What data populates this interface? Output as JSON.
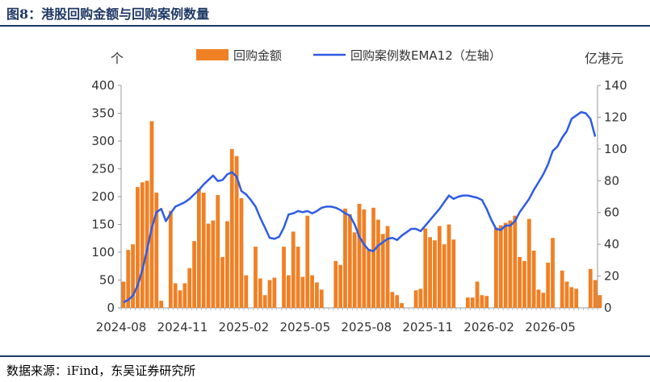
{
  "header": {
    "title": "图8：港股回购金额与回购案例数量"
  },
  "footer": {
    "source": "数据来源：iFind，东吴证券研究所"
  },
  "colors": {
    "bar": "#f08024",
    "line": "#2e5ce6",
    "title": "#1f3864",
    "axis": "#333333"
  },
  "chart_data": {
    "type": "bar",
    "legend_position": "top",
    "grid": false,
    "left_axis": {
      "unit_label": "个",
      "range": [
        0,
        400
      ],
      "ticks": [
        "0",
        "50",
        "100",
        "150",
        "200",
        "250",
        "300",
        "350",
        "400"
      ]
    },
    "right_axis": {
      "unit_label": "亿港元",
      "range": [
        0,
        140
      ],
      "ticks": [
        "0",
        "20",
        "40",
        "60",
        "80",
        "100",
        "120",
        "140"
      ]
    },
    "x_labels": [
      "2024-08",
      "2024-11",
      "2025-02",
      "2025-05",
      "2025-08",
      "2025-11",
      "2026-02",
      "2026-05"
    ],
    "period_count": 101,
    "x_label_periods": [
      0,
      13,
      26,
      39,
      52,
      65,
      78,
      91
    ],
    "series": [
      {
        "name": "回购金额",
        "kind": "bar",
        "axis": "right",
        "values": [
          16.5,
          36.5,
          40,
          76,
          79,
          80,
          117.5,
          72.5,
          4.5,
          null,
          61,
          15.5,
          11,
          15.5,
          25,
          42,
          75,
          72.5,
          53,
          55,
          71,
          32,
          54.5,
          100,
          95.5,
          69,
          20.5,
          null,
          38.5,
          18.5,
          8,
          17.5,
          19,
          null,
          38.5,
          20.5,
          48,
          38.5,
          19.5,
          58,
          20.5,
          16,
          11.5,
          null,
          null,
          29.5,
          27,
          62.5,
          59,
          47.5,
          65.5,
          62,
          37,
          63,
          55.5,
          46.5,
          51.5,
          10,
          8,
          3,
          null,
          null,
          11,
          12,
          50,
          44.5,
          42.5,
          51.5,
          40,
          52.5,
          43,
          null,
          null,
          6.5,
          6.5,
          16.5,
          8,
          7.5,
          null,
          50.5,
          52,
          53.5,
          55,
          58,
          32,
          29.5,
          56,
          36,
          11.5,
          9.5,
          28.5,
          44,
          null,
          23.5,
          16.5,
          13,
          12,
          null,
          null,
          24.5,
          17.5,
          8
        ]
      },
      {
        "name": "回购案例数EMA12（左轴）",
        "kind": "line",
        "axis": "left",
        "x_period": [
          0,
          1,
          2,
          3,
          4,
          5,
          6,
          7,
          8,
          9,
          10,
          11,
          12,
          13,
          14,
          15,
          16,
          17,
          18,
          19,
          20,
          21,
          22,
          23,
          24,
          25,
          26,
          27,
          28,
          29,
          30,
          31,
          32,
          33,
          34,
          35,
          36,
          37,
          38,
          39,
          40,
          41,
          42,
          43,
          44,
          45,
          46,
          47,
          48,
          49,
          50,
          51,
          52,
          53,
          54,
          55,
          56,
          57,
          58,
          59,
          60,
          61,
          62,
          63,
          64,
          65,
          66,
          67,
          68,
          69,
          70,
          71,
          72,
          73,
          74,
          75,
          76,
          77,
          78,
          79,
          80,
          81,
          82,
          83,
          84,
          85,
          86,
          87,
          88,
          89,
          90,
          91,
          92,
          93,
          94,
          95,
          96,
          97,
          98,
          99,
          100
        ],
        "values": [
          10,
          14,
          22,
          40,
          68,
          104,
          144,
          172,
          178,
          156,
          170,
          182,
          186,
          190,
          196,
          204,
          212,
          222,
          230,
          238,
          228,
          230,
          240,
          244,
          236,
          210,
          204,
          194,
          182,
          162,
          144,
          126,
          124,
          128,
          144,
          168,
          170,
          174,
          172,
          174,
          170,
          174,
          180,
          182,
          182,
          180,
          176,
          170,
          166,
          150,
          128,
          114,
          104,
          102,
          112,
          118,
          124,
          126,
          122,
          130,
          136,
          142,
          142,
          138,
          148,
          158,
          168,
          178,
          190,
          202,
          196,
          200,
          202,
          202,
          200,
          198,
          194,
          178,
          158,
          142,
          140,
          148,
          148,
          156,
          172,
          184,
          196,
          212,
          226,
          240,
          258,
          282,
          290,
          306,
          318,
          340,
          346,
          352,
          350,
          340,
          308
        ]
      }
    ]
  }
}
